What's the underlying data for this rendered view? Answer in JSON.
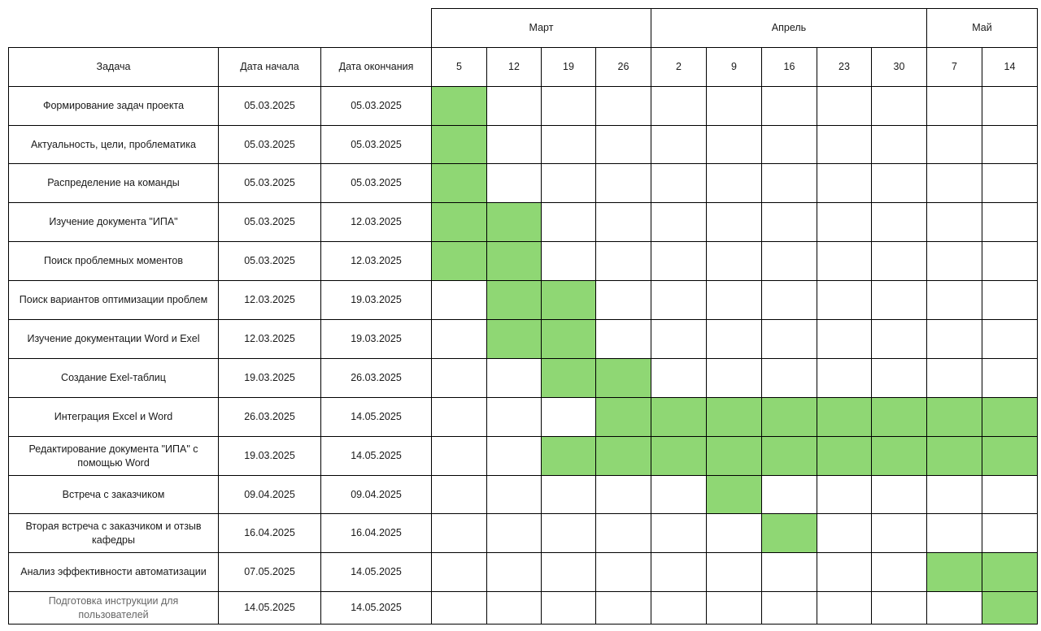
{
  "chart_data": {
    "type": "table",
    "colors": {
      "bar": "#8fd774",
      "grid": "#000000"
    },
    "headers": {
      "task": "Задача",
      "start": "Дата начала",
      "end": "Дата окончания"
    },
    "months": [
      {
        "label": "Март",
        "span": 4
      },
      {
        "label": "Апрель",
        "span": 5
      },
      {
        "label": "Май",
        "span": 2
      }
    ],
    "weeks": [
      "5",
      "12",
      "19",
      "26",
      "2",
      "9",
      "16",
      "23",
      "30",
      "7",
      "14"
    ],
    "tasks": [
      {
        "name": "Формирование задач проекта",
        "start": "05.03.2025",
        "end": "05.03.2025",
        "active": [
          1,
          0,
          0,
          0,
          0,
          0,
          0,
          0,
          0,
          0,
          0
        ]
      },
      {
        "name": "Актуальность, цели, проблематика",
        "start": "05.03.2025",
        "end": "05.03.2025",
        "active": [
          1,
          0,
          0,
          0,
          0,
          0,
          0,
          0,
          0,
          0,
          0
        ]
      },
      {
        "name": "Распределение на команды",
        "start": "05.03.2025",
        "end": "05.03.2025",
        "active": [
          1,
          0,
          0,
          0,
          0,
          0,
          0,
          0,
          0,
          0,
          0
        ]
      },
      {
        "name": "Изучение документа \"ИПА\"",
        "start": "05.03.2025",
        "end": "12.03.2025",
        "active": [
          1,
          1,
          0,
          0,
          0,
          0,
          0,
          0,
          0,
          0,
          0
        ]
      },
      {
        "name": "Поиск проблемных моментов",
        "start": "05.03.2025",
        "end": "12.03.2025",
        "active": [
          1,
          1,
          0,
          0,
          0,
          0,
          0,
          0,
          0,
          0,
          0
        ]
      },
      {
        "name": "Поиск вариантов оптимизации проблем",
        "start": "12.03.2025",
        "end": "19.03.2025",
        "active": [
          0,
          1,
          1,
          0,
          0,
          0,
          0,
          0,
          0,
          0,
          0
        ]
      },
      {
        "name": "Изучение документации Word и Exel",
        "start": "12.03.2025",
        "end": "19.03.2025",
        "active": [
          0,
          1,
          1,
          0,
          0,
          0,
          0,
          0,
          0,
          0,
          0
        ]
      },
      {
        "name": "Создание Exel-таблиц",
        "start": "19.03.2025",
        "end": "26.03.2025",
        "active": [
          0,
          0,
          1,
          1,
          0,
          0,
          0,
          0,
          0,
          0,
          0
        ]
      },
      {
        "name": "Интеграция Excel и Word",
        "start": "26.03.2025",
        "end": "14.05.2025",
        "active": [
          0,
          0,
          0,
          1,
          1,
          1,
          1,
          1,
          1,
          1,
          1
        ]
      },
      {
        "name": "Редактирование документа \"ИПА\" с помощью Word",
        "start": "19.03.2025",
        "end": "14.05.2025",
        "active": [
          0,
          0,
          1,
          1,
          1,
          1,
          1,
          1,
          1,
          1,
          1
        ]
      },
      {
        "name": "Встреча с заказчиком",
        "start": "09.04.2025",
        "end": "09.04.2025",
        "active": [
          0,
          0,
          0,
          0,
          0,
          1,
          0,
          0,
          0,
          0,
          0
        ]
      },
      {
        "name": "Вторая встреча с заказчиком и отзыв кафедры",
        "start": "16.04.2025",
        "end": "16.04.2025",
        "active": [
          0,
          0,
          0,
          0,
          0,
          0,
          1,
          0,
          0,
          0,
          0
        ]
      },
      {
        "name": "Анализ эффективности автоматизации",
        "start": "07.05.2025",
        "end": "14.05.2025",
        "active": [
          0,
          0,
          0,
          0,
          0,
          0,
          0,
          0,
          0,
          1,
          1
        ]
      },
      {
        "name": "Подготовка инструкции для пользователей",
        "start": "14.05.2025",
        "end": "14.05.2025",
        "active": [
          0,
          0,
          0,
          0,
          0,
          0,
          0,
          0,
          0,
          0,
          1
        ],
        "muted": true
      }
    ]
  }
}
